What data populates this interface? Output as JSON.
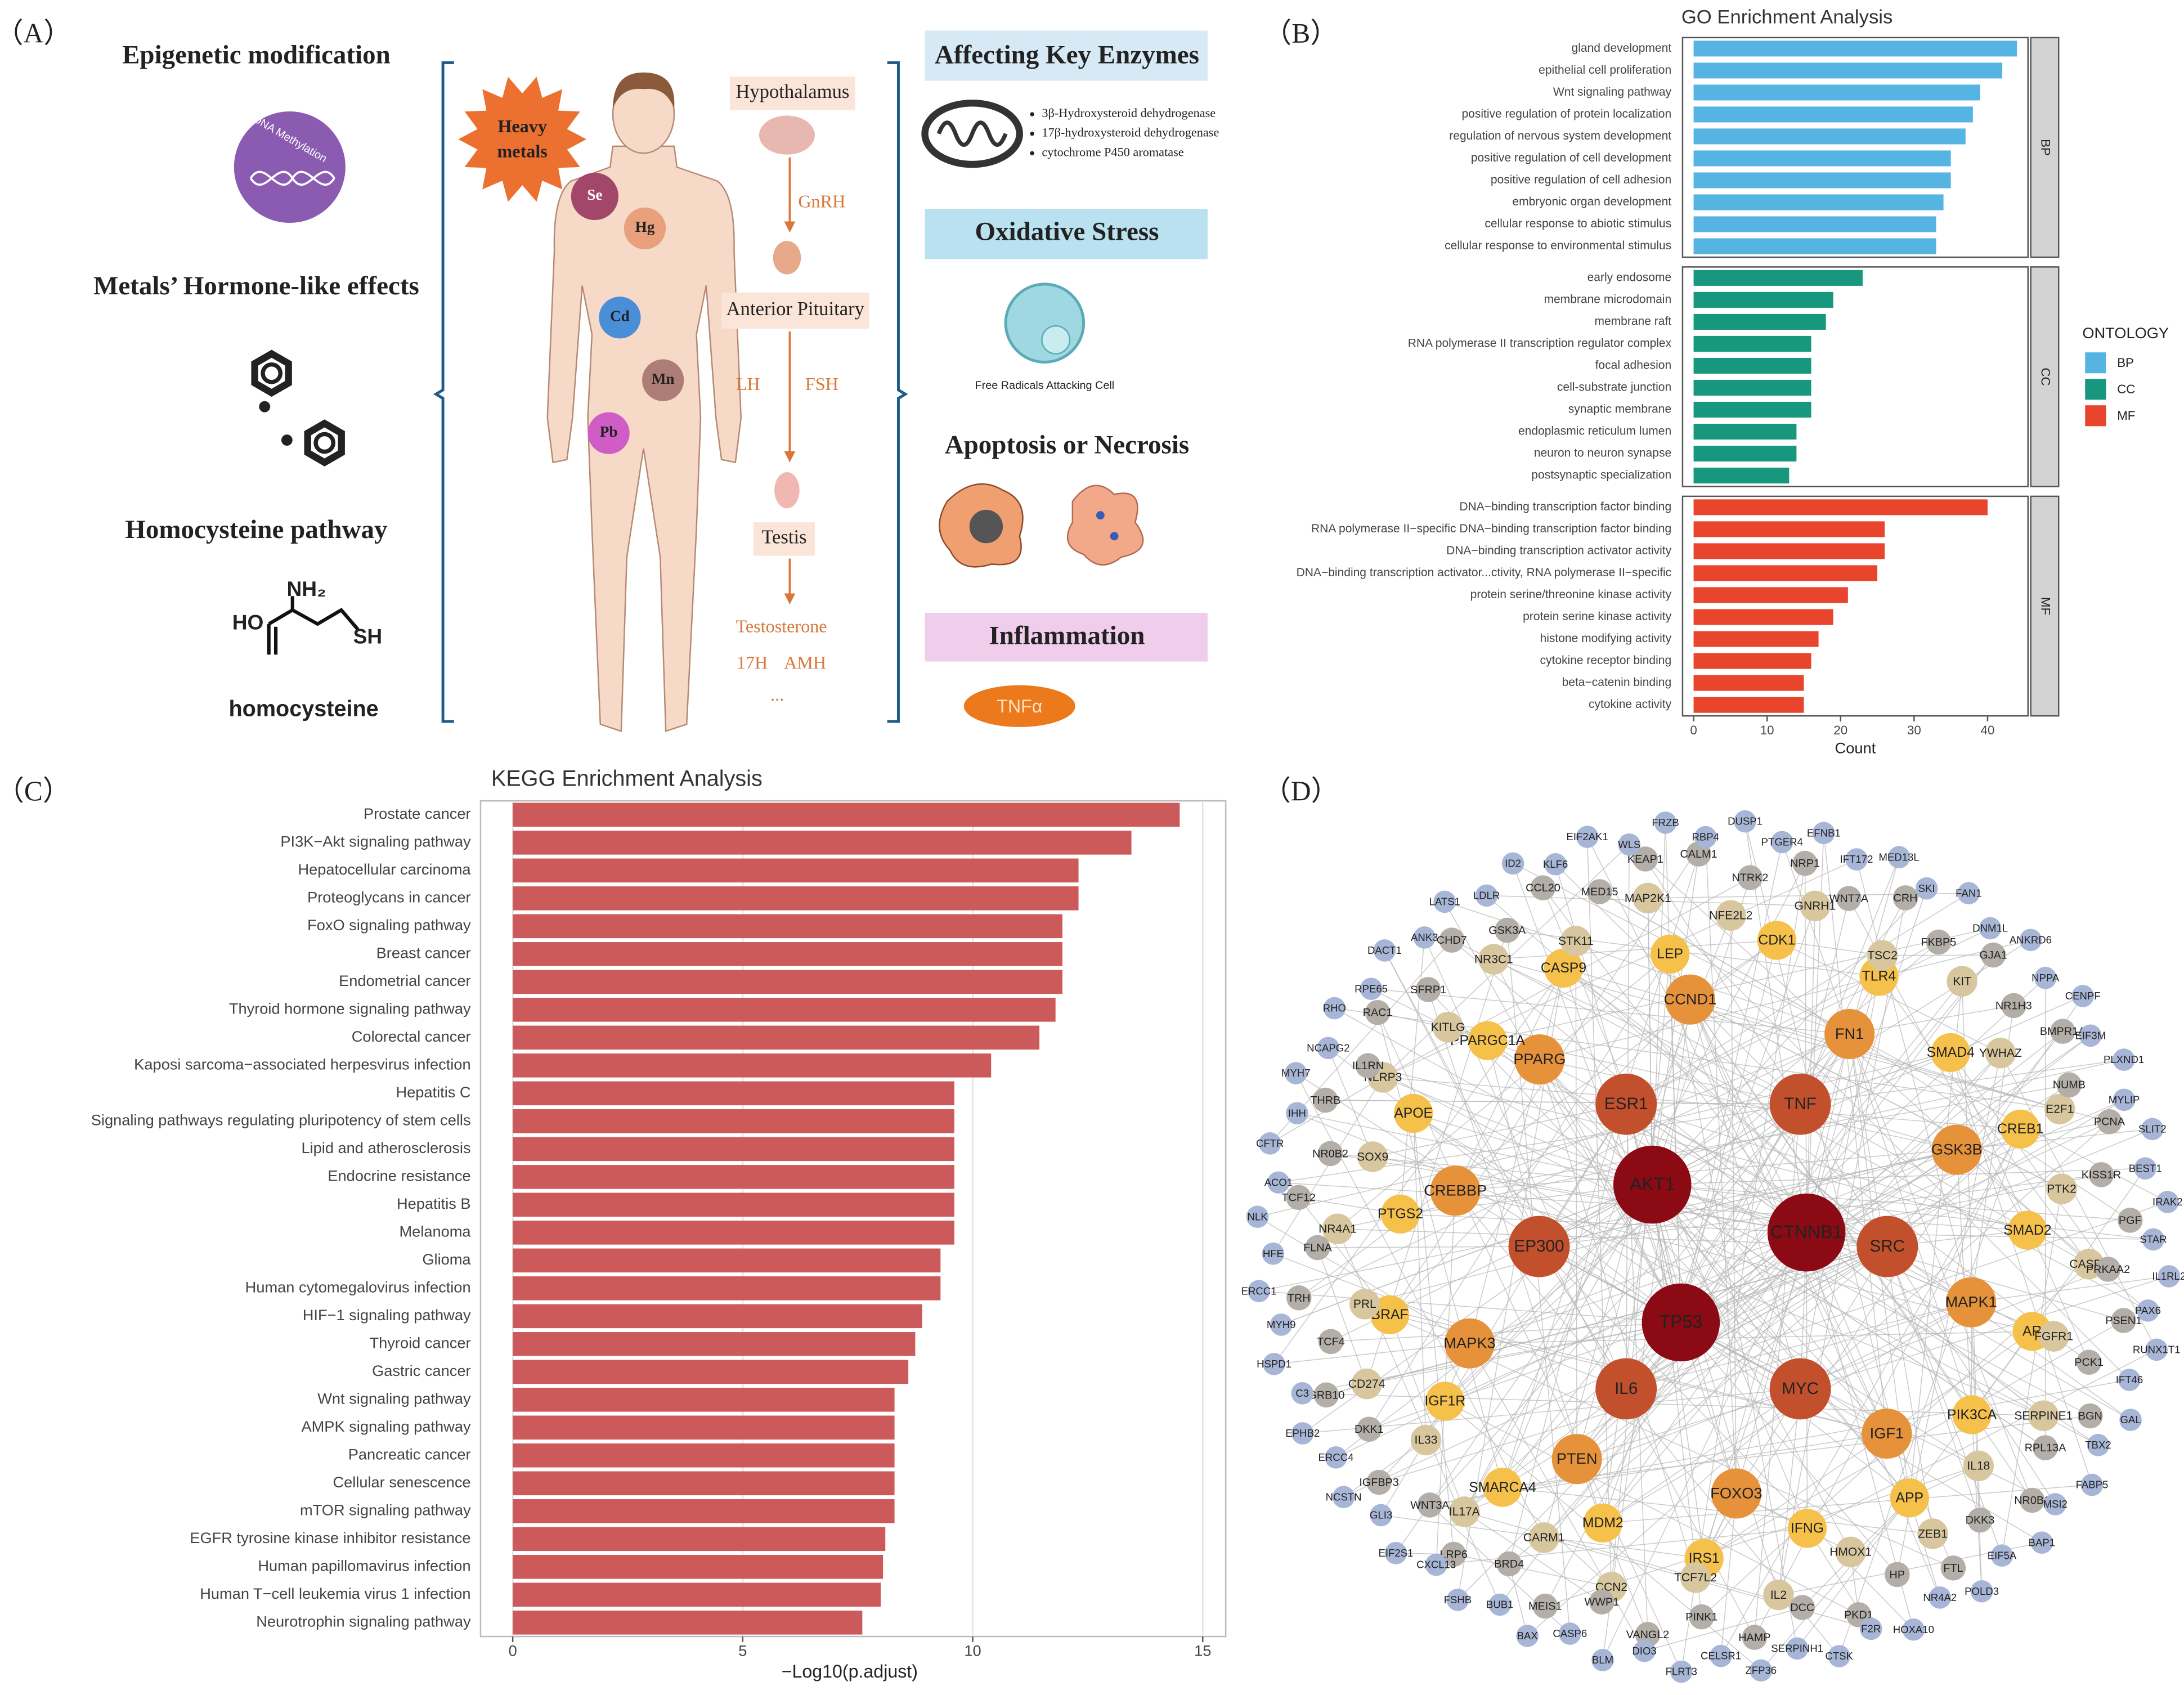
{
  "panel_a": {
    "label": "（A）",
    "mechanisms": [
      "Epigenetic modification",
      "Metals’ Hormone-like effects",
      "Homocysteine pathway"
    ],
    "dna_label": "DNA Methylation",
    "homocysteine": {
      "amino": "NH₂",
      "hydroxyl": "HO",
      "thiol": "SH",
      "name": "homocysteine"
    },
    "heavy_metals": [
      "Heavy",
      "metals"
    ],
    "metals": [
      "Se",
      "Hg",
      "Cd",
      "Mn",
      "Pb"
    ],
    "hpg_axis": {
      "hypothalamus": "Hypothalamus",
      "gnrh": "GnRH",
      "pituitary": "Anterior Pituitary",
      "lh": "LH",
      "fsh": "FSH",
      "testis": "Testis",
      "testosterone": "Testosterone",
      "h17": "17H",
      "amh": "AMH",
      "more": "..."
    },
    "effects": {
      "enzymes": "Affecting Key Enzymes",
      "enzyme_list": [
        "3β-Hydroxysteroid dehydrogenase",
        "17β-hydroxysteroid dehydrogenase",
        "cytochrome P450 aromatase"
      ],
      "oxidative": "Oxidative Stress",
      "radicals": "Free Radicals Attacking Cell",
      "apoptosis": "Apoptosis or Necrosis",
      "inflammation": "Inflammation",
      "tnf": "TNFα"
    }
  },
  "chart_data": [
    {
      "type": "bar",
      "orientation": "horizontal",
      "panel_label": "（B）",
      "title": "GO Enrichment Analysis",
      "x_label": "Count",
      "legend_title": "ONTOLOGY",
      "xlim": [
        -1.5,
        45.5
      ],
      "xticks": [
        0,
        10,
        20,
        30,
        40
      ],
      "grid": false,
      "facets": [
        {
          "name": "BP",
          "color": "#56b4e3",
          "categories": [
            "gland development",
            "epithelial cell proliferation",
            "Wnt signaling pathway",
            "positive regulation of protein localization",
            "regulation of nervous system development",
            "positive regulation of cell development",
            "positive regulation of cell adhesion",
            "embryonic organ development",
            "cellular response to abiotic stimulus",
            "cellular response to environmental stimulus"
          ],
          "values": [
            44,
            42,
            39,
            38,
            37,
            35,
            35,
            34,
            33,
            33
          ]
        },
        {
          "name": "CC",
          "color": "#17977d",
          "categories": [
            "early endosome",
            "membrane microdomain",
            "membrane raft",
            "RNA polymerase II transcription regulator complex",
            "focal adhesion",
            "cell-substrate junction",
            "synaptic membrane",
            "endoplasmic reticulum lumen",
            "neuron to neuron synapse",
            "postsynaptic specialization"
          ],
          "values": [
            23,
            19,
            18,
            16,
            16,
            16,
            16,
            14,
            14,
            13
          ]
        },
        {
          "name": "MF",
          "color": "#e8452c",
          "categories": [
            "DNA−binding transcription factor binding",
            "RNA polymerase II−specific DNA−binding transcription factor binding",
            "DNA−binding transcription activator activity",
            "DNA−binding transcription activator...ctivity, RNA polymerase II−specific",
            "protein serine/threonine kinase activity",
            "protein serine kinase activity",
            "histone modifying activity",
            "cytokine receptor binding",
            "beta−catenin binding",
            "cytokine activity"
          ],
          "values": [
            40,
            26,
            26,
            25,
            21,
            19,
            17,
            16,
            15,
            15
          ]
        }
      ]
    },
    {
      "type": "bar",
      "orientation": "horizontal",
      "panel_label": "（C）",
      "title": "KEGG Enrichment Analysis",
      "x_label": "−Log10(p.adjust)",
      "xlim": [
        -0.7,
        15.5
      ],
      "xticks": [
        0,
        5,
        10,
        15
      ],
      "grid": true,
      "color": "#cd5a5a",
      "categories": [
        "Prostate cancer",
        "PI3K−Akt signaling pathway",
        "Hepatocellular carcinoma",
        "Proteoglycans in cancer",
        "FoxO signaling pathway",
        "Breast cancer",
        "Endometrial cancer",
        "Thyroid hormone signaling pathway",
        "Colorectal cancer",
        "Kaposi sarcoma−associated herpesvirus infection",
        "Hepatitis C",
        "Signaling pathways regulating pluripotency of stem cells",
        "Lipid and atherosclerosis",
        "Endocrine resistance",
        "Hepatitis B",
        "Melanoma",
        "Glioma",
        "Human cytomegalovirus infection",
        "HIF−1 signaling pathway",
        "Thyroid cancer",
        "Gastric cancer",
        "Wnt signaling pathway",
        "AMPK signaling pathway",
        "Pancreatic cancer",
        "Cellular senescence",
        "mTOR signaling pathway",
        "EGFR tyrosine kinase inhibitor resistance",
        "Human papillomavirus infection",
        "Human T−cell leukemia virus 1 infection",
        "Neurotrophin signaling pathway"
      ],
      "values": [
        14.5,
        13.45,
        12.3,
        12.3,
        11.95,
        11.95,
        11.95,
        11.8,
        11.45,
        10.4,
        9.6,
        9.6,
        9.6,
        9.6,
        9.6,
        9.6,
        9.3,
        9.3,
        8.9,
        8.75,
        8.6,
        8.3,
        8.3,
        8.3,
        8.3,
        8.3,
        8.1,
        8.05,
        8.0,
        7.6
      ]
    }
  ],
  "network": {
    "label": "（D）",
    "tiers": [
      {
        "color": "#8b0a14",
        "nodes": [
          "AKT1",
          "CTNNB1",
          "TP53"
        ]
      },
      {
        "color": "#c2502c",
        "nodes": [
          "SRC",
          "MYC",
          "IL6",
          "EP300",
          "ESR1",
          "TNF"
        ]
      },
      {
        "color": "#e5923b",
        "nodes": [
          "CCND1",
          "FN1",
          "GSK3B",
          "MAPK1",
          "IGF1",
          "FOXO3",
          "PTEN",
          "MAPK3",
          "CREBBP",
          "PPARG"
        ]
      },
      {
        "color": "#f6c14b",
        "nodes": [
          "TLR4",
          "SMAD4",
          "CREB1",
          "SMAD2",
          "AR",
          "PIK3CA",
          "APP",
          "IFNG",
          "IRS1",
          "MDM2",
          "SMARCA4",
          "IGF1R",
          "BRAF",
          "PTGS2",
          "APOE",
          "PPARGC1A",
          "CASP9",
          "LEP",
          "CDK1"
        ]
      },
      {
        "color": "#d8c79e",
        "nodes": [
          "MAP2K1",
          "NFE2L2",
          "GNRH1",
          "TSC2",
          "KIT",
          "YWHAZ",
          "E2F1",
          "PTK2",
          "CASP1",
          "FGFR1",
          "SERPINE1",
          "IL18",
          "ZEB1",
          "HMOX1",
          "IL2",
          "TCF7L2",
          "CCN2",
          "CARM1",
          "IL17A",
          "IL33",
          "CD274",
          "PRL",
          "NR4A1",
          "SOX9",
          "NLRP3",
          "KITLG",
          "NR3C1",
          "STK11"
        ]
      },
      {
        "color": "#b3aea8",
        "nodes": [
          "CALM1",
          "NTRK2",
          "NRP1",
          "WNT7A",
          "CRH",
          "FKBP5",
          "GJA1",
          "NR1H3",
          "BMPR1A",
          "NUMB",
          "PCNA",
          "KISS1R",
          "PGF",
          "PRKAA2",
          "PSEN1",
          "PCK1",
          "BGN",
          "RPL13A",
          "NR0B1",
          "DKK3",
          "FTL",
          "HP",
          "PKD1",
          "DCC",
          "HAMP",
          "PINK1",
          "VANGL2",
          "WWP1",
          "MEIS1",
          "BRD4",
          "LRP6",
          "WNT3A",
          "IGFBP3",
          "DKK1",
          "GRB10",
          "TCF4",
          "TRH",
          "FLNA",
          "TCF12",
          "NR0B2",
          "THRB",
          "IL1RN",
          "RAC1",
          "SFRP1",
          "CHD7",
          "GSK3A",
          "CCL20",
          "MED15",
          "KEAP1"
        ]
      },
      {
        "color": "#a7b6d6",
        "nodes": [
          "FRZB",
          "RBP4",
          "DUSP1",
          "PTGER4",
          "EFNB1",
          "IFT172",
          "MED13L",
          "SKI",
          "FAN1",
          "DNM1L",
          "ANKRD6",
          "NPPA",
          "CENPF",
          "EIF3M",
          "PLXND1",
          "MYLIP",
          "SLIT2",
          "BEST1",
          "IRAK2",
          "STAR",
          "IL1RL2",
          "PAX6",
          "RUNX1T1",
          "IFT46",
          "GAL",
          "TBX2",
          "FABP5",
          "MSI2",
          "BAP1",
          "EIF5A",
          "POLD3",
          "NR4A2",
          "HOXA10",
          "F2R",
          "CTSK",
          "SERPINH1",
          "ZFP36",
          "CELSR1",
          "FLRT3",
          "DIO3",
          "BLM",
          "CASP6",
          "BAX",
          "BUB1",
          "FSHB",
          "CXCL13",
          "EIF2S1",
          "GLI3",
          "NCSTN",
          "ERCC4",
          "EPHB2",
          "C3",
          "HSPD1",
          "MYH9",
          "ERCC1",
          "HFE",
          "NLK",
          "ACO1",
          "CFTR",
          "IHH",
          "MYH7",
          "NCAPG2",
          "RHO",
          "RPE65",
          "DACT1",
          "ANK3",
          "LATS1",
          "LDLR",
          "ID2",
          "KLF6",
          "EIF2AK1",
          "WLS"
        ]
      }
    ]
  }
}
